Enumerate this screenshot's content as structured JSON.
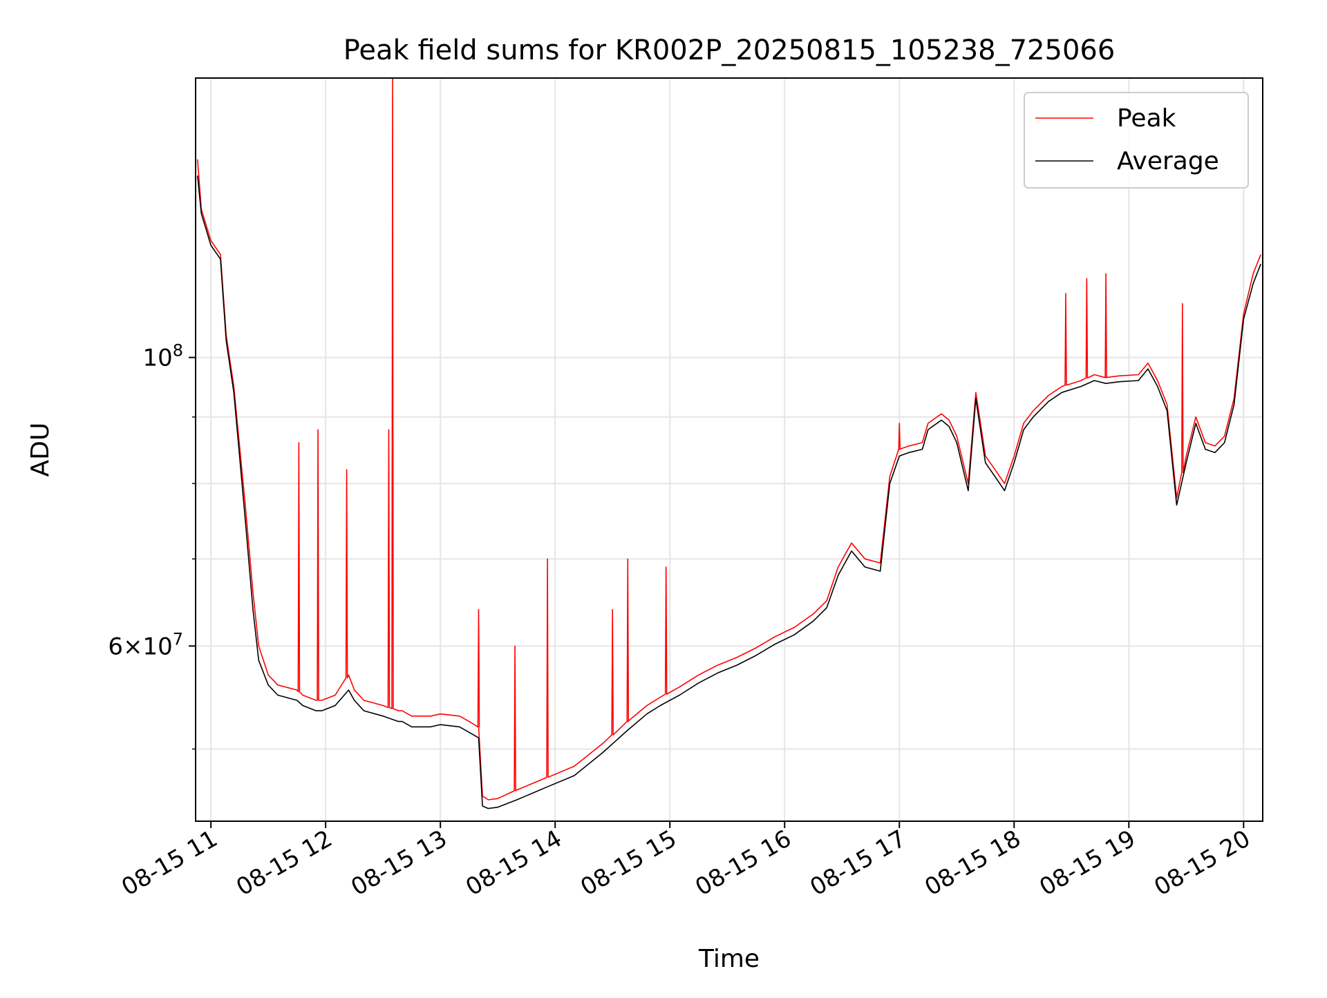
{
  "chart_data": {
    "type": "line",
    "title": "Peak field sums for KR002P_20250815_105238_725066",
    "xlabel": "Time",
    "ylabel": "ADU",
    "yscale": "log",
    "xlim": [
      "2025-08-15 10:52",
      "2025-08-15 20:10"
    ],
    "ylim": [
      44000000,
      164000000
    ],
    "x_ticks": [
      {
        "value": "2025-08-15 11:00",
        "label": "08-15 11"
      },
      {
        "value": "2025-08-15 12:00",
        "label": "08-15 12"
      },
      {
        "value": "2025-08-15 13:00",
        "label": "08-15 13"
      },
      {
        "value": "2025-08-15 14:00",
        "label": "08-15 14"
      },
      {
        "value": "2025-08-15 15:00",
        "label": "08-15 15"
      },
      {
        "value": "2025-08-15 16:00",
        "label": "08-15 16"
      },
      {
        "value": "2025-08-15 17:00",
        "label": "08-15 17"
      },
      {
        "value": "2025-08-15 18:00",
        "label": "08-15 18"
      },
      {
        "value": "2025-08-15 19:00",
        "label": "08-15 19"
      },
      {
        "value": "2025-08-15 20:00",
        "label": "08-15 20"
      }
    ],
    "y_major_ticks": [
      {
        "value": 60000000,
        "mantissa": "6",
        "exponent": "7"
      },
      {
        "value": 100000000,
        "mantissa": "",
        "exponent": "8"
      }
    ],
    "y_minor_ticks": [
      50000000,
      70000000,
      80000000,
      90000000
    ],
    "grid": true,
    "legend_position": "top-right",
    "series": [
      {
        "name": "Peak",
        "color": "#ff0000",
        "x": [
          "2025-08-15 10:53",
          "2025-08-15 10:55",
          "2025-08-15 11:00",
          "2025-08-15 11:05",
          "2025-08-15 11:08",
          "2025-08-15 11:12",
          "2025-08-15 11:18",
          "2025-08-15 11:22",
          "2025-08-15 11:25",
          "2025-08-15 11:30",
          "2025-08-15 11:35",
          "2025-08-15 11:45",
          "2025-08-15 11:48",
          "2025-08-15 11:55",
          "2025-08-15 11:58",
          "2025-08-15 12:05",
          "2025-08-15 12:12",
          "2025-08-15 12:15",
          "2025-08-15 12:20",
          "2025-08-15 12:30",
          "2025-08-15 12:38",
          "2025-08-15 12:40",
          "2025-08-15 12:45",
          "2025-08-15 12:50",
          "2025-08-15 12:55",
          "2025-08-15 13:00",
          "2025-08-15 13:10",
          "2025-08-15 13:15",
          "2025-08-15 13:20",
          "2025-08-15 13:22",
          "2025-08-15 13:25",
          "2025-08-15 13:30",
          "2025-08-15 13:40",
          "2025-08-15 13:55",
          "2025-08-15 14:10",
          "2025-08-15 14:25",
          "2025-08-15 14:38",
          "2025-08-15 14:48",
          "2025-08-15 14:55",
          "2025-08-15 15:05",
          "2025-08-15 15:15",
          "2025-08-15 15:25",
          "2025-08-15 15:35",
          "2025-08-15 15:45",
          "2025-08-15 15:55",
          "2025-08-15 16:05",
          "2025-08-15 16:15",
          "2025-08-15 16:22",
          "2025-08-15 16:28",
          "2025-08-15 16:35",
          "2025-08-15 16:42",
          "2025-08-15 16:50",
          "2025-08-15 16:55",
          "2025-08-15 17:00",
          "2025-08-15 17:05",
          "2025-08-15 17:12",
          "2025-08-15 17:15",
          "2025-08-15 17:22",
          "2025-08-15 17:26",
          "2025-08-15 17:30",
          "2025-08-15 17:36",
          "2025-08-15 17:40",
          "2025-08-15 17:45",
          "2025-08-15 17:50",
          "2025-08-15 17:55",
          "2025-08-15 18:00",
          "2025-08-15 18:05",
          "2025-08-15 18:10",
          "2025-08-15 18:18",
          "2025-08-15 18:25",
          "2025-08-15 18:35",
          "2025-08-15 18:42",
          "2025-08-15 18:48",
          "2025-08-15 18:55",
          "2025-08-15 19:05",
          "2025-08-15 19:10",
          "2025-08-15 19:15",
          "2025-08-15 19:20",
          "2025-08-15 19:25",
          "2025-08-15 19:30",
          "2025-08-15 19:35",
          "2025-08-15 19:40",
          "2025-08-15 19:45",
          "2025-08-15 19:50",
          "2025-08-15 19:55",
          "2025-08-15 20:00",
          "2025-08-15 20:05",
          "2025-08-15 20:09"
        ],
        "y": [
          142000000,
          130000000,
          123000000,
          120000000,
          104000000,
          95000000,
          77000000,
          66000000,
          60000000,
          57000000,
          56000000,
          55500000,
          55000000,
          54500000,
          54500000,
          55000000,
          57000000,
          55500000,
          54500000,
          54000000,
          53500000,
          53500000,
          53000000,
          53000000,
          53000000,
          53200000,
          53000000,
          52500000,
          52000000,
          46000000,
          45700000,
          45800000,
          46500000,
          47500000,
          48500000,
          50500000,
          52500000,
          54000000,
          54800000,
          55800000,
          57000000,
          58000000,
          58800000,
          59800000,
          61000000,
          62000000,
          63500000,
          65000000,
          69000000,
          72000000,
          70000000,
          69500000,
          81000000,
          85000000,
          85500000,
          86000000,
          89000000,
          90500000,
          89500000,
          87000000,
          80000000,
          94000000,
          84000000,
          82000000,
          80000000,
          84000000,
          89000000,
          91000000,
          93500000,
          95000000,
          96000000,
          97000000,
          96500000,
          96800000,
          97000000,
          99000000,
          96000000,
          92000000,
          78000000,
          84000000,
          90000000,
          86000000,
          85500000,
          87000000,
          93000000,
          108000000,
          116000000,
          120000000
        ],
        "spikes": [
          {
            "x": "2025-08-15 11:46",
            "y": 86000000
          },
          {
            "x": "2025-08-15 11:56",
            "y": 88000000
          },
          {
            "x": "2025-08-15 12:11",
            "y": 82000000
          },
          {
            "x": "2025-08-15 12:33",
            "y": 88000000
          },
          {
            "x": "2025-08-15 12:35",
            "y": 164000000
          },
          {
            "x": "2025-08-15 13:20",
            "y": 64000000
          },
          {
            "x": "2025-08-15 13:39",
            "y": 60000000
          },
          {
            "x": "2025-08-15 13:56",
            "y": 70000000
          },
          {
            "x": "2025-08-15 14:30",
            "y": 64000000
          },
          {
            "x": "2025-08-15 14:38",
            "y": 70000000
          },
          {
            "x": "2025-08-15 14:58",
            "y": 69000000
          },
          {
            "x": "2025-08-15 17:00",
            "y": 89000000
          },
          {
            "x": "2025-08-15 18:27",
            "y": 112000000
          },
          {
            "x": "2025-08-15 18:38",
            "y": 115000000
          },
          {
            "x": "2025-08-15 18:48",
            "y": 116000000
          },
          {
            "x": "2025-08-15 19:28",
            "y": 110000000
          }
        ]
      },
      {
        "name": "Average",
        "color": "#000000",
        "x": [
          "2025-08-15 10:53",
          "2025-08-15 10:55",
          "2025-08-15 11:00",
          "2025-08-15 11:05",
          "2025-08-15 11:08",
          "2025-08-15 11:12",
          "2025-08-15 11:18",
          "2025-08-15 11:22",
          "2025-08-15 11:25",
          "2025-08-15 11:30",
          "2025-08-15 11:35",
          "2025-08-15 11:45",
          "2025-08-15 11:48",
          "2025-08-15 11:55",
          "2025-08-15 11:58",
          "2025-08-15 12:05",
          "2025-08-15 12:12",
          "2025-08-15 12:15",
          "2025-08-15 12:20",
          "2025-08-15 12:30",
          "2025-08-15 12:38",
          "2025-08-15 12:40",
          "2025-08-15 12:45",
          "2025-08-15 12:50",
          "2025-08-15 12:55",
          "2025-08-15 13:00",
          "2025-08-15 13:10",
          "2025-08-15 13:15",
          "2025-08-15 13:20",
          "2025-08-15 13:22",
          "2025-08-15 13:25",
          "2025-08-15 13:30",
          "2025-08-15 13:40",
          "2025-08-15 13:55",
          "2025-08-15 14:10",
          "2025-08-15 14:25",
          "2025-08-15 14:38",
          "2025-08-15 14:48",
          "2025-08-15 14:55",
          "2025-08-15 15:05",
          "2025-08-15 15:15",
          "2025-08-15 15:25",
          "2025-08-15 15:35",
          "2025-08-15 15:45",
          "2025-08-15 15:55",
          "2025-08-15 16:05",
          "2025-08-15 16:15",
          "2025-08-15 16:22",
          "2025-08-15 16:28",
          "2025-08-15 16:35",
          "2025-08-15 16:42",
          "2025-08-15 16:50",
          "2025-08-15 16:55",
          "2025-08-15 17:00",
          "2025-08-15 17:05",
          "2025-08-15 17:12",
          "2025-08-15 17:15",
          "2025-08-15 17:22",
          "2025-08-15 17:26",
          "2025-08-15 17:30",
          "2025-08-15 17:36",
          "2025-08-15 17:40",
          "2025-08-15 17:45",
          "2025-08-15 17:50",
          "2025-08-15 17:55",
          "2025-08-15 18:00",
          "2025-08-15 18:05",
          "2025-08-15 18:10",
          "2025-08-15 18:18",
          "2025-08-15 18:25",
          "2025-08-15 18:35",
          "2025-08-15 18:42",
          "2025-08-15 18:48",
          "2025-08-15 18:55",
          "2025-08-15 19:05",
          "2025-08-15 19:10",
          "2025-08-15 19:15",
          "2025-08-15 19:20",
          "2025-08-15 19:25",
          "2025-08-15 19:30",
          "2025-08-15 19:35",
          "2025-08-15 19:40",
          "2025-08-15 19:45",
          "2025-08-15 19:50",
          "2025-08-15 19:55",
          "2025-08-15 20:00",
          "2025-08-15 20:05",
          "2025-08-15 20:09"
        ],
        "y": [
          138000000,
          129000000,
          122000000,
          119000000,
          103000000,
          94000000,
          75000000,
          64000000,
          58500000,
          56000000,
          55000000,
          54500000,
          54000000,
          53500000,
          53500000,
          54000000,
          55500000,
          54500000,
          53500000,
          53000000,
          52500000,
          52500000,
          52000000,
          52000000,
          52000000,
          52200000,
          52000000,
          51500000,
          51000000,
          45200000,
          45000000,
          45100000,
          45700000,
          46700000,
          47700000,
          49700000,
          51700000,
          53200000,
          54000000,
          55000000,
          56200000,
          57200000,
          58000000,
          59000000,
          60200000,
          61200000,
          62700000,
          64200000,
          68000000,
          71000000,
          69000000,
          68500000,
          80000000,
          84000000,
          84500000,
          85000000,
          88000000,
          89500000,
          88500000,
          86000000,
          79000000,
          93000000,
          83000000,
          81000000,
          79000000,
          83000000,
          88000000,
          90000000,
          92500000,
          94000000,
          95000000,
          96000000,
          95500000,
          95800000,
          96000000,
          98000000,
          95000000,
          91000000,
          77000000,
          83000000,
          89000000,
          85000000,
          84500000,
          86000000,
          92000000,
          107000000,
          114000000,
          118000000
        ]
      }
    ]
  }
}
